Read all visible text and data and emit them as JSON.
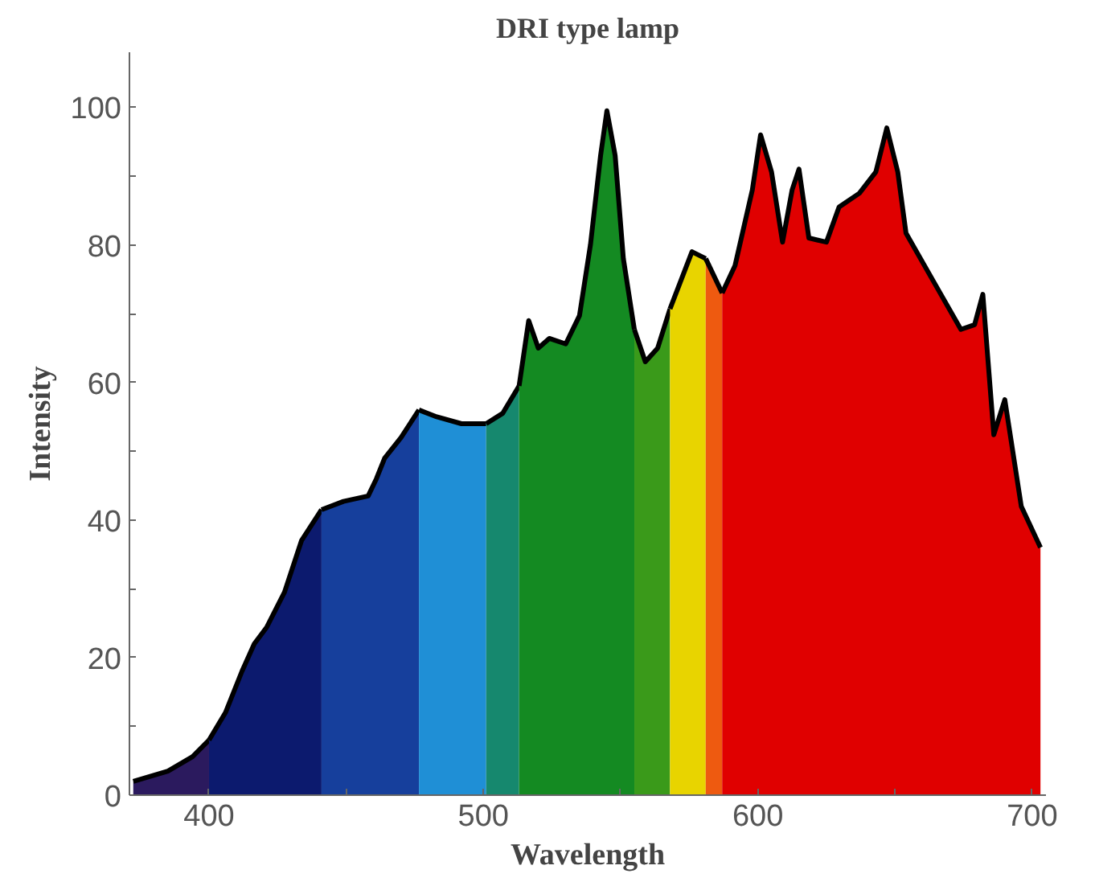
{
  "chart_data": {
    "type": "area",
    "title": "DRI type lamp",
    "xlabel": "Wavelength",
    "ylabel": "Intensity",
    "xlim": [
      371,
      705
    ],
    "ylim": [
      0,
      108
    ],
    "xticks": [
      400,
      {
        "value": 450,
        "label": null
      },
      500,
      {
        "value": 550,
        "label": null
      },
      600,
      {
        "value": 650,
        "label": null
      },
      700
    ],
    "yticks": [
      0,
      {
        "value": 10,
        "label": null
      },
      20,
      {
        "value": 30,
        "label": null
      },
      40,
      {
        "value": 50,
        "label": null
      },
      60,
      {
        "value": 70,
        "label": null
      },
      80,
      {
        "value": 90,
        "label": null
      },
      100
    ],
    "grid": false,
    "series": [
      {
        "color": "#2b1a5e",
        "x": [
          372.4,
          385,
          394,
          400
        ],
        "values": [
          2,
          3.5,
          5.6,
          8
        ]
      },
      {
        "color": "#0c1a6e",
        "x": [
          400,
          406,
          412,
          416.5,
          421,
          427.5,
          433.7,
          441
        ],
        "values": [
          8,
          12,
          18,
          22,
          24.4,
          29.5,
          37,
          41.5
        ]
      },
      {
        "color": "#163f9c",
        "x": [
          441,
          449,
          458,
          461,
          464,
          470,
          476.5
        ],
        "values": [
          41.5,
          42.7,
          43.5,
          46,
          49,
          52,
          56
        ]
      },
      {
        "color": "#1f8fd6",
        "x": [
          476.5,
          483,
          492,
          501
        ],
        "values": [
          56,
          55,
          54,
          54
        ]
      },
      {
        "color": "#16886e",
        "x": [
          501,
          507,
          513
        ],
        "values": [
          54,
          55.5,
          59.5
        ]
      },
      {
        "color": "#148a22",
        "x": [
          513,
          516.5,
          520,
          524,
          530,
          535,
          539,
          542.7,
          545,
          548,
          551,
          555
        ],
        "values": [
          59.5,
          69,
          65,
          66.4,
          65.6,
          69.7,
          80,
          93,
          99.5,
          93,
          78,
          67.7
        ]
      },
      {
        "color": "#3a9a1a",
        "x": [
          555,
          559,
          563.5,
          568
        ],
        "values": [
          67.7,
          63,
          65,
          70.7
        ]
      },
      {
        "color": "#e8d400",
        "x": [
          568,
          576,
          581
        ],
        "values": [
          70.7,
          79,
          78
        ]
      },
      {
        "color": "#ee5a10",
        "x": [
          581,
          587
        ],
        "values": [
          78,
          73
        ]
      },
      {
        "color": "#e00000",
        "x": [
          587,
          591.7,
          598,
          601,
          605,
          609,
          612.5,
          615,
          618.6,
          625,
          629.6,
          637,
          643,
          647,
          651,
          654,
          665,
          674,
          679,
          682,
          686,
          690,
          696,
          703
        ],
        "values": [
          73,
          77,
          88,
          96,
          90.6,
          80.4,
          88,
          91,
          81,
          80.4,
          85.5,
          87.5,
          90.6,
          97,
          90.6,
          81.7,
          74,
          67.7,
          68.4,
          72.8,
          52.4,
          57.5,
          42,
          36
        ]
      }
    ]
  }
}
